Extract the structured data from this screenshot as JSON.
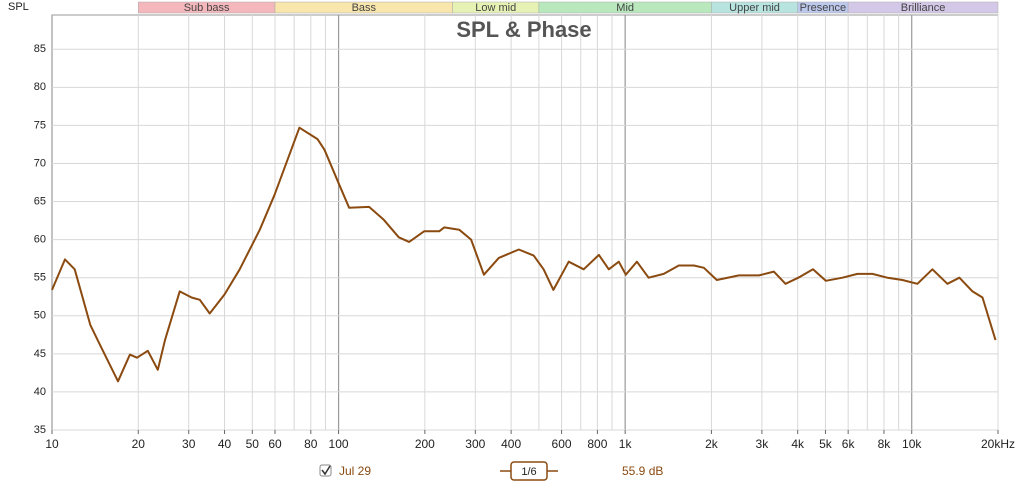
{
  "chart_data": {
    "type": "line",
    "title": "SPL & Phase",
    "y_label": "SPL",
    "xscale": "log",
    "xlim": [
      10,
      20000
    ],
    "ylim": [
      35,
      89.5
    ],
    "yticks": [
      35,
      40,
      45,
      50,
      55,
      60,
      65,
      70,
      75,
      80,
      85
    ],
    "xticks": [
      10,
      20,
      30,
      40,
      50,
      60,
      80,
      100,
      200,
      300,
      400,
      600,
      800,
      {
        "value": 1000,
        "label": "1k"
      },
      {
        "value": 2000,
        "label": "2k"
      },
      {
        "value": 3000,
        "label": "3k"
      },
      {
        "value": 4000,
        "label": "4k"
      },
      {
        "value": 5000,
        "label": "5k"
      },
      {
        "value": 6000,
        "label": "6k"
      },
      {
        "value": 8000,
        "label": "8k"
      },
      {
        "value": 10000,
        "label": "10k"
      },
      {
        "value": 20000,
        "label": "20kHz"
      }
    ],
    "xgrid": [
      10,
      20,
      30,
      40,
      50,
      60,
      70,
      80,
      90,
      100,
      200,
      300,
      400,
      500,
      600,
      700,
      800,
      900,
      1000,
      2000,
      3000,
      4000,
      5000,
      6000,
      7000,
      8000,
      9000,
      10000,
      20000
    ],
    "grid": true,
    "bands": [
      {
        "name": "Sub bass",
        "from": 20,
        "to": 60,
        "color": "#f4b8bc"
      },
      {
        "name": "Bass",
        "from": 60,
        "to": 250,
        "color": "#f8e6ac"
      },
      {
        "name": "Low mid",
        "from": 250,
        "to": 500,
        "color": "#e6f2b4"
      },
      {
        "name": "Mid",
        "from": 500,
        "to": 2000,
        "color": "#b8e8bc"
      },
      {
        "name": "Upper mid",
        "from": 2000,
        "to": 4000,
        "color": "#b8e4e0"
      },
      {
        "name": "Presence",
        "from": 4000,
        "to": 6000,
        "color": "#bcc8ec"
      },
      {
        "name": "Brilliance",
        "from": 6000,
        "to": 20000,
        "color": "#d4c8e8"
      }
    ],
    "series": [
      {
        "name": "Jul 29",
        "color": "#8b4a10",
        "x": [
          10,
          11.1,
          12.0,
          13.6,
          14.7,
          17.0,
          18.7,
          19.8,
          21.6,
          23.4,
          24.8,
          27.9,
          30.7,
          32.8,
          35.5,
          40.0,
          45.2,
          53.1,
          59.8,
          73.0,
          84.4,
          89.3,
          100.6,
          108.8,
          127.8,
          143.8,
          162.3,
          176.3,
          198.8,
          224.4,
          233.7,
          263.5,
          290,
          321.5,
          362.3,
          425.5,
          479.6,
          519.1,
          562,
          635.3,
          717,
          809.5,
          877.2,
          950,
          1005,
          1099,
          1207,
          1363,
          1539,
          1737,
          1883,
          2089,
          2496,
          2932,
          3301,
          3627,
          4019,
          4524,
          5015,
          5731,
          6464,
          7291,
          8226,
          9279,
          10467,
          11807,
          13318,
          14664,
          16290,
          17653,
          19600
        ],
        "values": [
          53.4,
          57.4,
          56.1,
          48.8,
          46.2,
          41.4,
          44.9,
          44.5,
          45.4,
          42.9,
          46.8,
          53.2,
          52.4,
          52.1,
          50.3,
          52.8,
          56.1,
          61.3,
          65.9,
          74.7,
          73.2,
          71.8,
          67.2,
          64.2,
          64.3,
          62.6,
          60.3,
          59.7,
          61.1,
          61.1,
          61.6,
          61.3,
          60.0,
          55.4,
          57.6,
          58.7,
          57.9,
          56.1,
          53.4,
          57.1,
          56.1,
          58.0,
          56.1,
          57.1,
          55.4,
          57.1,
          55.0,
          55.5,
          56.6,
          56.6,
          56.3,
          54.7,
          55.3,
          55.3,
          55.8,
          54.2,
          55.0,
          56.1,
          54.6,
          55.0,
          55.5,
          55.5,
          55.0,
          54.7,
          54.2,
          56.1,
          54.2,
          55.0,
          53.2,
          52.4,
          46.8
        ]
      }
    ],
    "smoothing": "1/6",
    "readout": "55.9 dB"
  }
}
